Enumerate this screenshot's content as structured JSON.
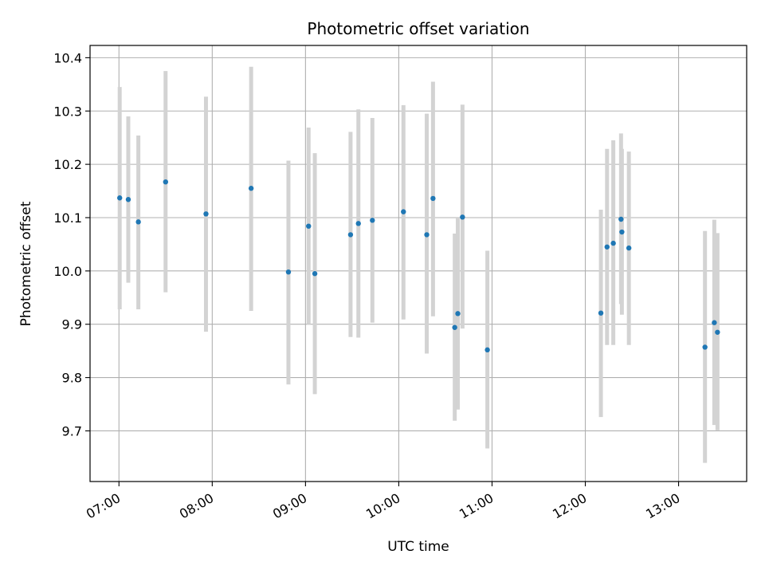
{
  "chart_data": {
    "type": "scatter",
    "title": "Photometric offset variation",
    "xlabel": "UTC time",
    "ylabel": "Photometric offset",
    "grid": true,
    "x_unit": "hour",
    "xlim": [
      6.69,
      13.73
    ],
    "ylim": [
      9.605,
      10.423
    ],
    "x_ticks": [
      {
        "value": 7,
        "label": "07:00"
      },
      {
        "value": 8,
        "label": "08:00"
      },
      {
        "value": 9,
        "label": "09:00"
      },
      {
        "value": 10,
        "label": "10:00"
      },
      {
        "value": 11,
        "label": "11:00"
      },
      {
        "value": 12,
        "label": "12:00"
      },
      {
        "value": 13,
        "label": "13:00"
      }
    ],
    "y_ticks": [
      {
        "value": 9.7,
        "label": "9.7"
      },
      {
        "value": 9.8,
        "label": "9.8"
      },
      {
        "value": 9.9,
        "label": "9.9"
      },
      {
        "value": 10.0,
        "label": "10.0"
      },
      {
        "value": 10.1,
        "label": "10.1"
      },
      {
        "value": 10.2,
        "label": "10.2"
      },
      {
        "value": 10.3,
        "label": "10.3"
      },
      {
        "value": 10.4,
        "label": "10.4"
      }
    ],
    "colors": {
      "point": "#1f77b4",
      "errorbar": "#d3d3d3",
      "grid": "#b0b0b0"
    },
    "points": [
      {
        "x": 7.008,
        "y": 10.137,
        "ylow": 9.928,
        "yhigh": 10.345
      },
      {
        "x": 7.1,
        "y": 10.134,
        "ylow": 9.978,
        "yhigh": 10.29
      },
      {
        "x": 7.208,
        "y": 10.092,
        "ylow": 9.928,
        "yhigh": 10.254
      },
      {
        "x": 7.5,
        "y": 10.167,
        "ylow": 9.96,
        "yhigh": 10.375
      },
      {
        "x": 7.933,
        "y": 10.107,
        "ylow": 9.886,
        "yhigh": 10.327
      },
      {
        "x": 8.417,
        "y": 10.155,
        "ylow": 9.925,
        "yhigh": 10.383
      },
      {
        "x": 8.817,
        "y": 9.998,
        "ylow": 9.787,
        "yhigh": 10.207
      },
      {
        "x": 9.033,
        "y": 10.084,
        "ylow": 9.9,
        "yhigh": 10.269
      },
      {
        "x": 9.1,
        "y": 9.995,
        "ylow": 9.769,
        "yhigh": 10.221
      },
      {
        "x": 9.483,
        "y": 10.068,
        "ylow": 9.876,
        "yhigh": 10.261
      },
      {
        "x": 9.567,
        "y": 10.089,
        "ylow": 9.875,
        "yhigh": 10.303
      },
      {
        "x": 9.717,
        "y": 10.095,
        "ylow": 9.903,
        "yhigh": 10.287
      },
      {
        "x": 10.05,
        "y": 10.111,
        "ylow": 9.909,
        "yhigh": 10.311
      },
      {
        "x": 10.3,
        "y": 10.068,
        "ylow": 9.845,
        "yhigh": 10.295
      },
      {
        "x": 10.367,
        "y": 10.136,
        "ylow": 9.915,
        "yhigh": 10.355
      },
      {
        "x": 10.6,
        "y": 9.894,
        "ylow": 9.719,
        "yhigh": 10.07
      },
      {
        "x": 10.633,
        "y": 9.92,
        "ylow": 9.74,
        "yhigh": 10.1
      },
      {
        "x": 10.683,
        "y": 10.101,
        "ylow": 9.892,
        "yhigh": 10.312
      },
      {
        "x": 10.95,
        "y": 9.852,
        "ylow": 9.667,
        "yhigh": 10.038
      },
      {
        "x": 12.167,
        "y": 9.921,
        "ylow": 9.726,
        "yhigh": 10.115
      },
      {
        "x": 12.233,
        "y": 10.045,
        "ylow": 9.861,
        "yhigh": 10.229
      },
      {
        "x": 12.3,
        "y": 10.052,
        "ylow": 9.861,
        "yhigh": 10.245
      },
      {
        "x": 12.383,
        "y": 10.097,
        "ylow": 9.938,
        "yhigh": 10.258
      },
      {
        "x": 12.392,
        "y": 10.073,
        "ylow": 9.918,
        "yhigh": 10.229
      },
      {
        "x": 12.467,
        "y": 10.043,
        "ylow": 9.861,
        "yhigh": 10.224
      },
      {
        "x": 13.283,
        "y": 9.857,
        "ylow": 9.64,
        "yhigh": 10.075
      },
      {
        "x": 13.383,
        "y": 9.903,
        "ylow": 9.711,
        "yhigh": 10.096
      },
      {
        "x": 13.417,
        "y": 9.885,
        "ylow": 9.701,
        "yhigh": 10.071
      }
    ]
  }
}
